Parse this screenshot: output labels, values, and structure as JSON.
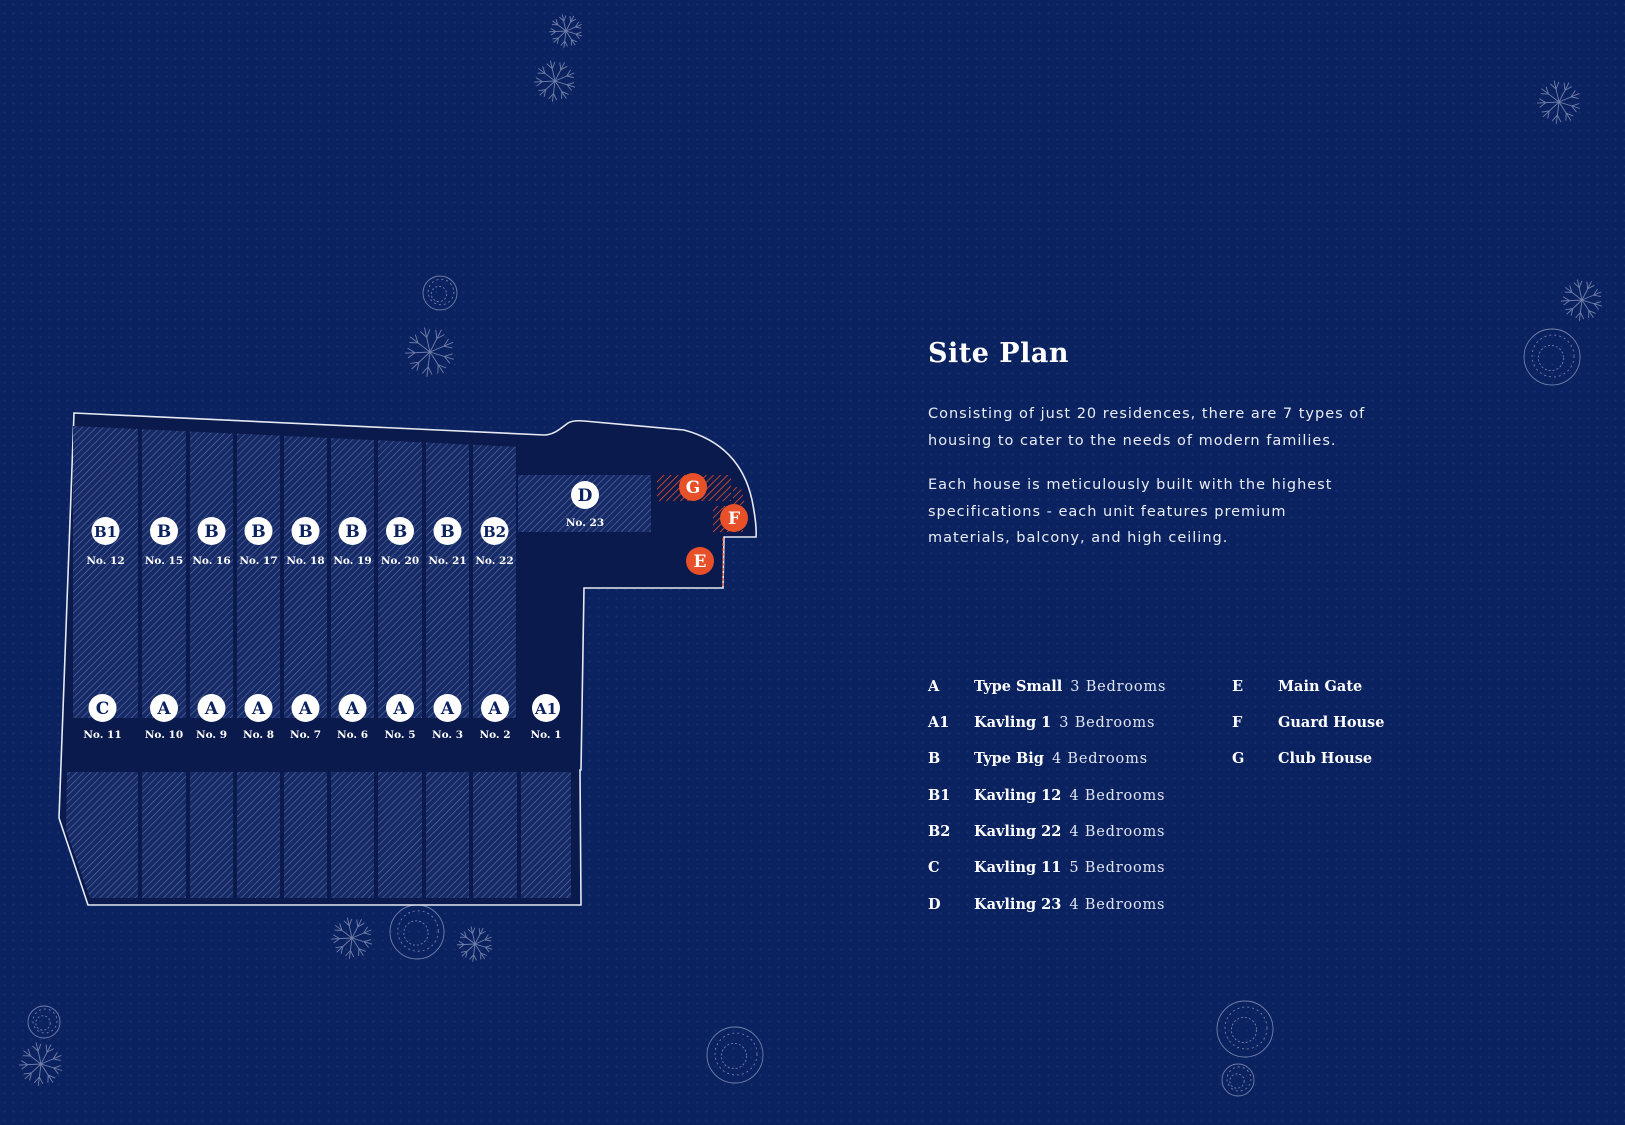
{
  "title": "Site Plan",
  "paragraphs": [
    "Consisting of just 20 residences, there are 7 types of housing to cater to the needs of modern families.",
    "Each house is meticulously built with the highest specifications - each unit features premium materials, balcony, and high ceiling."
  ],
  "legend_units": [
    {
      "key": "A",
      "name": "Type Small",
      "bedrooms": "3 Bedrooms"
    },
    {
      "key": "A1",
      "name": "Kavling 1",
      "bedrooms": "3 Bedrooms"
    },
    {
      "key": "B",
      "name": "Type Big",
      "bedrooms": "4 Bedrooms"
    },
    {
      "key": "B1",
      "name": "Kavling 12",
      "bedrooms": "4 Bedrooms"
    },
    {
      "key": "B2",
      "name": "Kavling 22",
      "bedrooms": "4 Bedrooms"
    },
    {
      "key": "C",
      "name": "Kavling 11",
      "bedrooms": "5 Bedrooms"
    },
    {
      "key": "D",
      "name": "Kavling 23",
      "bedrooms": "4 Bedrooms"
    }
  ],
  "legend_facilities": [
    {
      "key": "E",
      "name": "Main Gate"
    },
    {
      "key": "F",
      "name": "Guard House"
    },
    {
      "key": "G",
      "name": "Club House"
    }
  ],
  "plan": {
    "top_row": [
      {
        "type": "B1",
        "no": "No. 12"
      },
      {
        "type": "B",
        "no": "No. 15"
      },
      {
        "type": "B",
        "no": "No. 16"
      },
      {
        "type": "B",
        "no": "No. 17"
      },
      {
        "type": "B",
        "no": "No. 18"
      },
      {
        "type": "B",
        "no": "No. 19"
      },
      {
        "type": "B",
        "no": "No. 20"
      },
      {
        "type": "B",
        "no": "No. 21"
      },
      {
        "type": "B2",
        "no": "No. 22"
      }
    ],
    "bottom_row": [
      {
        "type": "C",
        "no": "No. 11"
      },
      {
        "type": "A",
        "no": "No. 10"
      },
      {
        "type": "A",
        "no": "No. 9"
      },
      {
        "type": "A",
        "no": "No. 8"
      },
      {
        "type": "A",
        "no": "No. 7"
      },
      {
        "type": "A",
        "no": "No. 6"
      },
      {
        "type": "A",
        "no": "No. 5"
      },
      {
        "type": "A",
        "no": "No. 3"
      },
      {
        "type": "A",
        "no": "No. 2"
      },
      {
        "type": "A1",
        "no": "No. 1"
      }
    ],
    "lot_d": {
      "type": "D",
      "no": "No. 23"
    },
    "facilities": {
      "G": "G",
      "F": "F",
      "E": "E"
    }
  },
  "colors": {
    "background": "#0b2260",
    "plan_fill": "#0a1a4c",
    "lot_hatch": "#5b6c9c",
    "facility": "#e8502a",
    "marker": "#ffffff",
    "marker_text": "#0b2260"
  }
}
